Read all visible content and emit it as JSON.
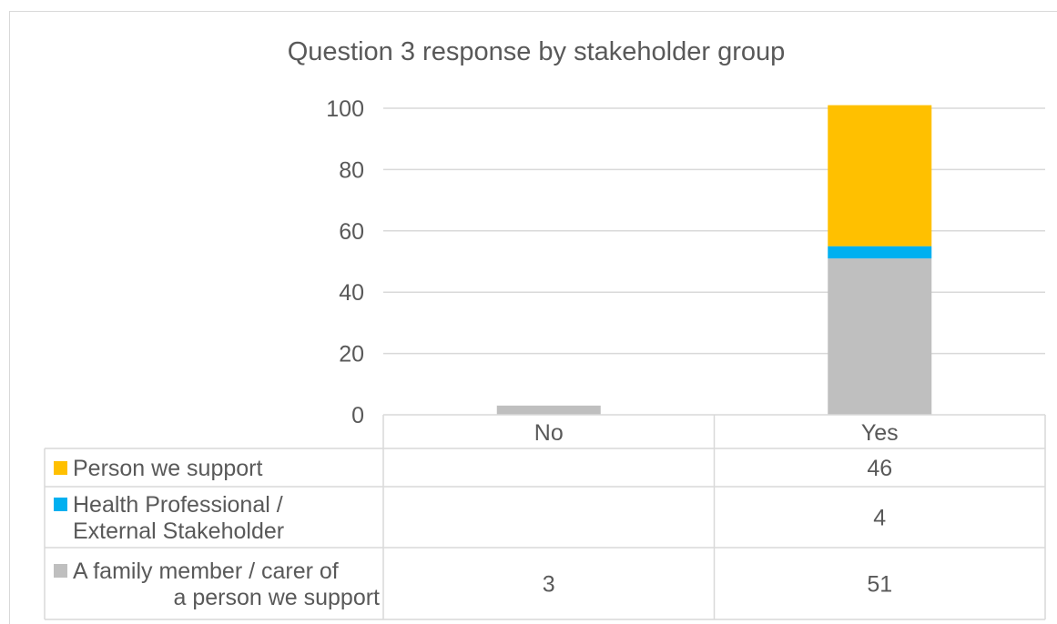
{
  "chart_data": {
    "type": "bar",
    "stacked": true,
    "title": "Question 3 response by stakeholder group",
    "categories": [
      "No",
      "Yes"
    ],
    "yticks": [
      "0",
      "20",
      "40",
      "60",
      "80",
      "100"
    ],
    "ylim": [
      0,
      100
    ],
    "series": [
      {
        "name": "A family member / carer of a person we support",
        "label_lines": [
          "A family member / carer of",
          "a person we support"
        ],
        "color": "#bfbfbf",
        "values": [
          3,
          51
        ],
        "display": [
          "3",
          "51"
        ]
      },
      {
        "name": "Health Professional / External Stakeholder",
        "label_lines": [
          "Health Professional /",
          "External Stakeholder"
        ],
        "color": "#00b0f0",
        "values": [
          0,
          4
        ],
        "display": [
          "",
          "4"
        ]
      },
      {
        "name": "Person we support",
        "label_lines": [
          "Person we support"
        ],
        "color": "#ffc000",
        "values": [
          0,
          46
        ],
        "display": [
          "",
          "46"
        ]
      }
    ],
    "data_table": true,
    "grid": true
  }
}
